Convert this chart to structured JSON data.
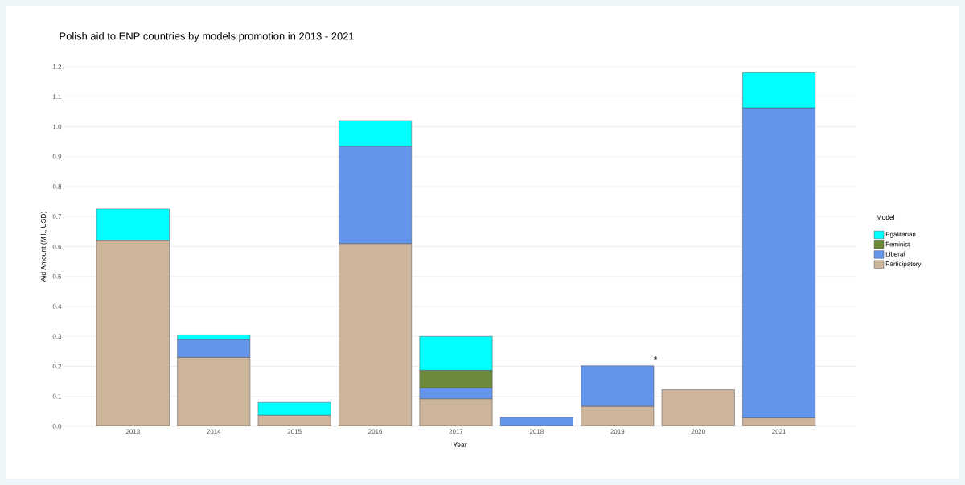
{
  "chart_data": {
    "type": "bar",
    "stacked": true,
    "title": "Polish aid to ENP countries by models promotion in 2013 - 2021",
    "xlabel": "Year",
    "ylabel": "Aid Amount (Mil., USD)",
    "legend_title": "Model",
    "legend": "right",
    "grid": "y",
    "categories": [
      "2013",
      "2014",
      "2015",
      "2016",
      "2017",
      "2018",
      "2019",
      "2020",
      "2021"
    ],
    "series": [
      {
        "name": "Participatory",
        "color": "#cdb59c",
        "values": [
          0.62,
          0.23,
          0.037,
          0.61,
          0.092,
          null,
          0.067,
          0.122,
          0.028
        ]
      },
      {
        "name": "Liberal",
        "color": "#6495ed",
        "values": [
          null,
          0.06,
          null,
          0.325,
          0.036,
          0.03,
          0.135,
          null,
          1.035
        ]
      },
      {
        "name": "Feminist",
        "color": "#6b8a3a",
        "values": [
          null,
          null,
          null,
          null,
          0.059,
          null,
          null,
          null,
          null
        ]
      },
      {
        "name": "Egalitarian",
        "color": "#00ffff",
        "values": [
          0.105,
          0.015,
          0.043,
          0.085,
          0.113,
          null,
          null,
          null,
          0.117
        ]
      }
    ],
    "ylim": [
      0,
      1.2
    ],
    "yticks": [
      {
        "value": 0,
        "label": "0.0"
      },
      {
        "value": 0.1,
        "label": "0.1"
      },
      {
        "value": 0.2,
        "label": "0.2"
      },
      {
        "value": 0.3,
        "label": "0.3"
      },
      {
        "value": 0.4,
        "label": "0.4"
      },
      {
        "value": 0.5,
        "label": "0.5"
      },
      {
        "value": 0.6,
        "label": "0.6"
      },
      {
        "value": 0.7,
        "label": "0.7"
      },
      {
        "value": 0.8,
        "label": "0.8"
      },
      {
        "value": 0.9,
        "label": "0.9"
      },
      {
        "value": 1.0,
        "label": "1.0"
      },
      {
        "value": 1.1,
        "label": "1.1"
      },
      {
        "value": 1.2,
        "label": "1.2"
      }
    ],
    "annotations": [
      "*"
    ]
  }
}
